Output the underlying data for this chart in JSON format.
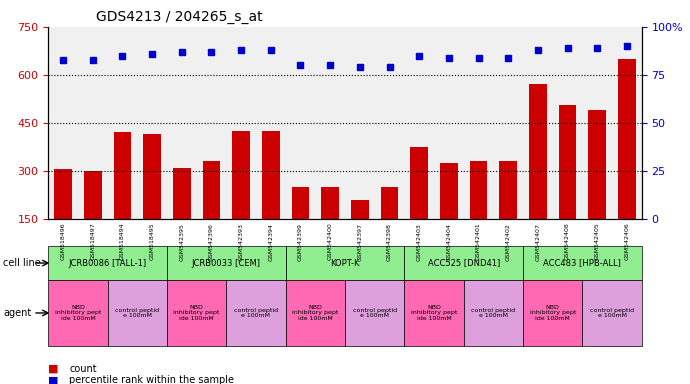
{
  "title": "GDS4213 / 204265_s_at",
  "samples": [
    "GSM518496",
    "GSM518497",
    "GSM518494",
    "GSM518495",
    "GSM542395",
    "GSM542396",
    "GSM542393",
    "GSM542394",
    "GSM542399",
    "GSM542400",
    "GSM542397",
    "GSM542398",
    "GSM542403",
    "GSM542404",
    "GSM542401",
    "GSM542402",
    "GSM542407",
    "GSM542408",
    "GSM542405",
    "GSM542406"
  ],
  "counts": [
    305,
    300,
    420,
    415,
    310,
    330,
    425,
    425,
    250,
    250,
    210,
    250,
    375,
    325,
    330,
    330,
    570,
    505,
    490,
    650
  ],
  "percentiles": [
    83,
    83,
    85,
    86,
    87,
    87,
    88,
    88,
    80,
    80,
    79,
    79,
    85,
    84,
    84,
    84,
    88,
    89,
    89,
    90
  ],
  "ylim_left": [
    150,
    750
  ],
  "ylim_right": [
    0,
    100
  ],
  "yticks_left": [
    150,
    300,
    450,
    600,
    750
  ],
  "yticks_right": [
    0,
    25,
    50,
    75,
    100
  ],
  "cell_lines": [
    {
      "label": "JCRB0086 [TALL-1]",
      "start": 0,
      "end": 4,
      "color": "#90EE90"
    },
    {
      "label": "JCRB0033 [CEM]",
      "start": 4,
      "end": 8,
      "color": "#90EE90"
    },
    {
      "label": "KOPT-K",
      "start": 8,
      "end": 12,
      "color": "#90EE90"
    },
    {
      "label": "ACC525 [DND41]",
      "start": 12,
      "end": 16,
      "color": "#90EE90"
    },
    {
      "label": "ACC483 [HPB-ALL]",
      "start": 16,
      "end": 20,
      "color": "#90EE90"
    }
  ],
  "agents": [
    {
      "label": "NBD\ninhibitory pept\nide 100mM",
      "start": 0,
      "end": 2,
      "color": "#FF69B4"
    },
    {
      "label": "control peptid\ne 100mM",
      "start": 2,
      "end": 4,
      "color": "#DDA0DD"
    },
    {
      "label": "NBD\ninhibitory pept\nide 100mM",
      "start": 4,
      "end": 6,
      "color": "#FF69B4"
    },
    {
      "label": "control peptid\ne 100mM",
      "start": 6,
      "end": 8,
      "color": "#DDA0DD"
    },
    {
      "label": "NBD\ninhibitory pept\nide 100mM",
      "start": 8,
      "end": 10,
      "color": "#FF69B4"
    },
    {
      "label": "control peptid\ne 100mM",
      "start": 10,
      "end": 12,
      "color": "#DDA0DD"
    },
    {
      "label": "NBD\ninhibitory pept\nide 100mM",
      "start": 12,
      "end": 14,
      "color": "#FF69B4"
    },
    {
      "label": "control peptid\ne 100mM",
      "start": 14,
      "end": 16,
      "color": "#DDA0DD"
    },
    {
      "label": "NBD\ninhibitory pept\nide 100mM",
      "start": 16,
      "end": 18,
      "color": "#FF69B4"
    },
    {
      "label": "control peptid\ne 100mM",
      "start": 18,
      "end": 20,
      "color": "#DDA0DD"
    }
  ],
  "bar_color": "#CC0000",
  "dot_color": "#0000CC",
  "bg_color": "#FFFFFF",
  "grid_color": "#000000",
  "axis_label_color_left": "#CC0000",
  "axis_label_color_right": "#0000CC",
  "legend_count_color": "#CC0000",
  "legend_pct_color": "#0000CC"
}
